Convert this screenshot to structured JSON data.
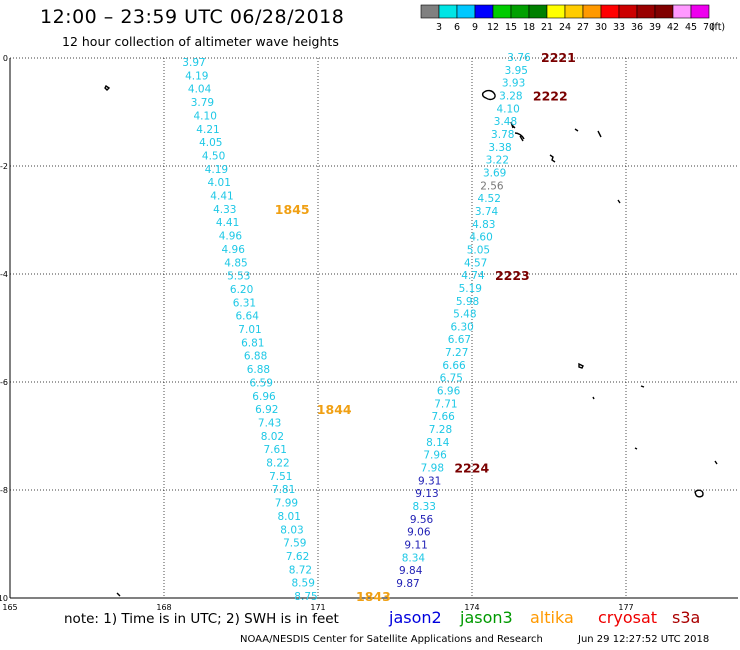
{
  "header": {
    "title": "12:00 – 23:59 UTC 06/28/2018",
    "subtitle": "12 hour collection of altimeter wave heights"
  },
  "legend": {
    "unit": "(ft)",
    "bins": [
      {
        "label": "3",
        "color": "#808080"
      },
      {
        "label": "6",
        "color": "#00e5e5"
      },
      {
        "label": "9",
        "color": "#00c8ff"
      },
      {
        "label": "12",
        "color": "#0000ff"
      },
      {
        "label": "15",
        "color": "#00cc00"
      },
      {
        "label": "18",
        "color": "#00a000"
      },
      {
        "label": "21",
        "color": "#008000"
      },
      {
        "label": "24",
        "color": "#ffff00"
      },
      {
        "label": "27",
        "color": "#ffcc00"
      },
      {
        "label": "30",
        "color": "#ff9900"
      },
      {
        "label": "33",
        "color": "#ff0000"
      },
      {
        "label": "36",
        "color": "#cc0000"
      },
      {
        "label": "39",
        "color": "#990000"
      },
      {
        "label": "42",
        "color": "#800000"
      },
      {
        "label": "45",
        "color": "#ff99ff"
      },
      {
        "label": "70",
        "color": "#ee00ee"
      }
    ]
  },
  "map": {
    "lat_labels": [
      "0",
      "-2",
      "-4",
      "-6",
      "-8",
      "-10"
    ],
    "lon_labels": [
      "165",
      "168",
      "171",
      "174",
      "177"
    ],
    "colors": {
      "light_blue": "#1ec8e6",
      "gray": "#777777",
      "blue": "#1e1eb4",
      "orange": "#f0a014",
      "dark_red": "#7a0000",
      "grid": "#000000"
    },
    "track_west": {
      "values": [
        "3.97",
        "4.19",
        "4.04",
        "3.79",
        "4.10",
        "4.21",
        "4.05",
        "4.50",
        "4.19",
        "4.01",
        "4.41",
        "4.33",
        "4.41",
        "4.96",
        "4.96",
        "4.85",
        "5.53",
        "6.20",
        "6.31",
        "6.64",
        "7.01",
        "6.81",
        "6.88",
        "6.88",
        "6.59",
        "6.96",
        "6.92",
        "7.43",
        "8.02",
        "7.61",
        "8.22",
        "7.51",
        "7.81",
        "7.99",
        "8.01",
        "8.03",
        "7.59",
        "7.62",
        "8.72",
        "8.59",
        "8.75"
      ],
      "time_labels": [
        {
          "text": "1845",
          "after_index": 11
        },
        {
          "text": "1844",
          "after_index": 26
        },
        {
          "text": "1843",
          "after_index": 40
        }
      ]
    },
    "track_east": {
      "values": [
        {
          "v": "3.76",
          "c": "light_blue"
        },
        {
          "v": "3.95",
          "c": "light_blue"
        },
        {
          "v": "3.93",
          "c": "light_blue"
        },
        {
          "v": "3.28",
          "c": "light_blue"
        },
        {
          "v": "4.10",
          "c": "light_blue"
        },
        {
          "v": "3.48",
          "c": "light_blue"
        },
        {
          "v": "3.78",
          "c": "light_blue"
        },
        {
          "v": "3.38",
          "c": "light_blue"
        },
        {
          "v": "3.22",
          "c": "light_blue"
        },
        {
          "v": "3.69",
          "c": "light_blue"
        },
        {
          "v": "2.56",
          "c": "gray"
        },
        {
          "v": "4.52",
          "c": "light_blue"
        },
        {
          "v": "3.74",
          "c": "light_blue"
        },
        {
          "v": "4.83",
          "c": "light_blue"
        },
        {
          "v": "4.60",
          "c": "light_blue"
        },
        {
          "v": "5.05",
          "c": "light_blue"
        },
        {
          "v": "4.57",
          "c": "light_blue"
        },
        {
          "v": "4.74",
          "c": "light_blue"
        },
        {
          "v": "5.19",
          "c": "light_blue"
        },
        {
          "v": "5.98",
          "c": "light_blue"
        },
        {
          "v": "5.48",
          "c": "light_blue"
        },
        {
          "v": "6.30",
          "c": "light_blue"
        },
        {
          "v": "6.67",
          "c": "light_blue"
        },
        {
          "v": "7.27",
          "c": "light_blue"
        },
        {
          "v": "6.66",
          "c": "light_blue"
        },
        {
          "v": "6.75",
          "c": "light_blue"
        },
        {
          "v": "6.96",
          "c": "light_blue"
        },
        {
          "v": "7.71",
          "c": "light_blue"
        },
        {
          "v": "7.66",
          "c": "light_blue"
        },
        {
          "v": "7.28",
          "c": "light_blue"
        },
        {
          "v": "8.14",
          "c": "light_blue"
        },
        {
          "v": "7.96",
          "c": "light_blue"
        },
        {
          "v": "7.98",
          "c": "light_blue"
        },
        {
          "v": "9.31",
          "c": "blue"
        },
        {
          "v": "9.13",
          "c": "blue"
        },
        {
          "v": "8.33",
          "c": "light_blue"
        },
        {
          "v": "9.56",
          "c": "blue"
        },
        {
          "v": "9.06",
          "c": "blue"
        },
        {
          "v": "9.11",
          "c": "blue"
        },
        {
          "v": "8.34",
          "c": "light_blue"
        },
        {
          "v": "9.84",
          "c": "blue"
        },
        {
          "v": "9.87",
          "c": "blue"
        }
      ],
      "time_labels": [
        {
          "text": "2221",
          "after_index": 0
        },
        {
          "text": "2222",
          "after_index": 3
        },
        {
          "text": "2223",
          "after_index": 17
        },
        {
          "text": "2224",
          "after_index": 32
        }
      ]
    }
  },
  "note": {
    "text": "note:  1) Time is in UTC;  2) SWH is in feet",
    "satellites": [
      {
        "name": "jason2",
        "color": "#0000dd"
      },
      {
        "name": "jason3",
        "color": "#009900"
      },
      {
        "name": "altika",
        "color": "#ff9900"
      },
      {
        "name": "cryosat",
        "color": "#ee0000"
      },
      {
        "name": "s3a",
        "color": "#aa0000"
      }
    ]
  },
  "footer": {
    "left": "NOAA/NESDIS Center for Satellite Applications and Research",
    "right": "Jun 29 12:27:52 UTC 2018"
  }
}
